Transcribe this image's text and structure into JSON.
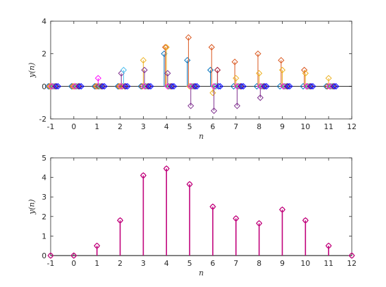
{
  "figure": {
    "background": "#ffffff",
    "axis_color": "#262626"
  },
  "chart_data": [
    {
      "type": "stem",
      "xlabel": "n",
      "ylabel": "y(n)",
      "xlim": [
        -1,
        12
      ],
      "ylim": [
        -2,
        4
      ],
      "xticks": [
        -1,
        0,
        1,
        2,
        3,
        4,
        5,
        6,
        7,
        8,
        9,
        10,
        11,
        12
      ],
      "yticks": [
        -2,
        0,
        2,
        4
      ],
      "grid": false,
      "marker": "diamond",
      "baseline": 0,
      "series": [
        {
          "color": "#0072bd",
          "offset": -0.1,
          "x": [
            -1,
            0,
            1,
            2,
            3,
            4,
            5,
            6,
            7,
            8,
            9,
            10,
            11
          ],
          "values": [
            0,
            0,
            0,
            0,
            0,
            2.0,
            1.6,
            1.0,
            0,
            0,
            0,
            0,
            0
          ]
        },
        {
          "color": "#d95319",
          "offset": -0.05,
          "x": [
            -1,
            0,
            1,
            2,
            3,
            4,
            5,
            6,
            7,
            8,
            9,
            10,
            11
          ],
          "values": [
            0,
            0,
            0,
            0,
            0,
            2.4,
            3.0,
            2.4,
            1.5,
            2.0,
            1.6,
            1.0,
            0
          ]
        },
        {
          "color": "#edb120",
          "offset": 0,
          "x": [
            -1,
            0,
            1,
            2,
            3,
            4,
            5,
            6,
            7,
            8,
            9,
            10,
            11
          ],
          "values": [
            0,
            0,
            0,
            0,
            1.6,
            2.4,
            0,
            -0.4,
            0.5,
            0.8,
            1.0,
            0.8,
            0.5
          ]
        },
        {
          "color": "#7e2f8e",
          "offset": 0.05,
          "x": [
            -1,
            0,
            1,
            2,
            3,
            4,
            5,
            6,
            7,
            8,
            9,
            10,
            11
          ],
          "values": [
            0,
            0,
            0,
            0.8,
            1.0,
            0.8,
            -1.2,
            -1.5,
            -1.2,
            -0.7,
            0,
            0,
            0
          ]
        },
        {
          "color": "#77ac30",
          "offset": 0.1,
          "x": [
            -1,
            0,
            1,
            2,
            3,
            4,
            5,
            6,
            7,
            8,
            9,
            10,
            11
          ],
          "values": [
            0,
            0,
            0,
            0,
            0,
            0,
            0,
            0,
            0,
            0,
            0,
            0,
            0
          ]
        },
        {
          "color": "#4dbeee",
          "offset": 0.15,
          "x": [
            -1,
            0,
            1,
            2,
            3,
            4,
            5,
            6,
            7,
            8,
            9,
            10,
            11
          ],
          "values": [
            0,
            0,
            0,
            1.0,
            0,
            0,
            0,
            0,
            0,
            0,
            0,
            0,
            0
          ]
        },
        {
          "color": "#a2142f",
          "offset": 0.2,
          "x": [
            -1,
            0,
            1,
            2,
            3,
            4,
            5,
            6,
            7,
            8,
            9,
            10,
            11
          ],
          "values": [
            0,
            0,
            0,
            0,
            0,
            0,
            0,
            1.0,
            0,
            0,
            0,
            0,
            0
          ]
        },
        {
          "color": "#ff00ff",
          "offset": 0.05,
          "x": [
            -1,
            0,
            1,
            2,
            3,
            4,
            5,
            6,
            7,
            8,
            9,
            10,
            11
          ],
          "values": [
            0,
            0,
            0.5,
            0,
            0,
            0,
            0,
            0,
            0,
            0,
            0,
            0,
            0
          ]
        },
        {
          "color": "#0000ff",
          "offset": 0.25,
          "x": [
            -1,
            0,
            1,
            2,
            3,
            4,
            5,
            6,
            7,
            8,
            9,
            10,
            11
          ],
          "values": [
            0,
            0,
            0,
            0,
            0,
            0,
            0,
            0,
            0,
            0,
            0,
            0,
            0
          ]
        },
        {
          "color": "#0000ff",
          "offset": 0.32,
          "x": [
            -1,
            0,
            1,
            2,
            3,
            4,
            5,
            6,
            7,
            8,
            9,
            10,
            11
          ],
          "values": [
            0,
            0,
            0,
            0,
            0,
            0,
            0,
            0,
            0,
            0,
            0,
            0,
            0
          ]
        }
      ]
    },
    {
      "type": "stem",
      "xlabel": "n",
      "ylabel": "y(n)",
      "xlim": [
        -1,
        12
      ],
      "ylim": [
        0,
        5
      ],
      "xticks": [
        -1,
        0,
        1,
        2,
        3,
        4,
        5,
        6,
        7,
        8,
        9,
        10,
        11,
        12
      ],
      "yticks": [
        0,
        1,
        2,
        3,
        4,
        5
      ],
      "grid": false,
      "marker": "circle+diamond",
      "baseline": 0,
      "series": [
        {
          "color": "#c0007a",
          "offset": 0,
          "x": [
            -1,
            0,
            1,
            2,
            3,
            4,
            5,
            6,
            7,
            8,
            9,
            10,
            11,
            12
          ],
          "values": [
            0,
            0,
            0.5,
            1.8,
            4.1,
            4.45,
            3.65,
            2.5,
            1.9,
            1.65,
            2.35,
            1.8,
            0.5,
            0
          ]
        }
      ]
    }
  ]
}
